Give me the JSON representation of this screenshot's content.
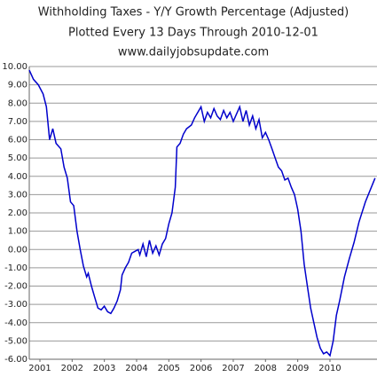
{
  "chart_data": {
    "type": "line",
    "title": "Withholding Taxes - Y/Y Growth Percentage (Adjusted)",
    "subtitle": "Plotted Every 13 Days Through 2010-12-01",
    "source": "www.dailyjobsupdate.com",
    "x": [
      2000.67,
      2000.8,
      2000.95,
      2001.1,
      2001.2,
      2001.3,
      2001.4,
      2001.5,
      2001.65,
      2001.75,
      2001.85,
      2001.95,
      2002.05,
      2002.15,
      2002.25,
      2002.35,
      2002.45,
      2002.5,
      2002.6,
      2002.7,
      2002.8,
      2002.9,
      2003.0,
      2003.1,
      2003.2,
      2003.3,
      2003.4,
      2003.5,
      2003.55,
      2003.65,
      2003.75,
      2003.85,
      2003.95,
      2004.05,
      2004.1,
      2004.2,
      2004.3,
      2004.4,
      2004.5,
      2004.6,
      2004.7,
      2004.8,
      2004.9,
      2005.0,
      2005.1,
      2005.2,
      2005.25,
      2005.35,
      2005.45,
      2005.55,
      2005.7,
      2005.8,
      2005.9,
      2006.0,
      2006.1,
      2006.2,
      2006.3,
      2006.4,
      2006.5,
      2006.6,
      2006.7,
      2006.8,
      2006.9,
      2007.0,
      2007.1,
      2007.2,
      2007.3,
      2007.4,
      2007.5,
      2007.6,
      2007.7,
      2007.8,
      2007.9,
      2008.0,
      2008.1,
      2008.2,
      2008.3,
      2008.4,
      2008.5,
      2008.6,
      2008.7,
      2008.8,
      2008.9,
      2009.0,
      2009.1,
      2009.2,
      2009.3,
      2009.4,
      2009.5,
      2009.6,
      2009.7,
      2009.8,
      2009.9,
      2010.0,
      2010.1,
      2010.2,
      2010.3,
      2010.45,
      2010.6,
      2010.75,
      2010.9,
      2011.1,
      2011.4
    ],
    "series": [
      {
        "name": "Y/Y Growth",
        "color": "#0000cc",
        "values": [
          9.8,
          9.3,
          9.0,
          8.5,
          7.8,
          6.0,
          6.6,
          5.8,
          5.5,
          4.5,
          3.9,
          2.6,
          2.4,
          1.0,
          0.0,
          -0.9,
          -1.5,
          -1.3,
          -2.0,
          -2.6,
          -3.2,
          -3.3,
          -3.1,
          -3.4,
          -3.5,
          -3.2,
          -2.8,
          -2.2,
          -1.4,
          -1.0,
          -0.7,
          -0.2,
          -0.1,
          0.0,
          -0.3,
          0.3,
          -0.4,
          0.5,
          -0.2,
          0.2,
          -0.3,
          0.3,
          0.6,
          1.4,
          2.0,
          3.4,
          5.6,
          5.8,
          6.3,
          6.6,
          6.8,
          7.2,
          7.5,
          7.8,
          7.0,
          7.5,
          7.2,
          7.7,
          7.3,
          7.1,
          7.6,
          7.2,
          7.5,
          7.0,
          7.4,
          7.8,
          7.0,
          7.6,
          6.8,
          7.3,
          6.6,
          7.1,
          6.1,
          6.4,
          6.0,
          5.5,
          5.0,
          4.5,
          4.3,
          3.8,
          3.9,
          3.4,
          3.0,
          2.2,
          1.0,
          -0.8,
          -2.0,
          -3.2,
          -4.0,
          -4.8,
          -5.4,
          -5.7,
          -5.6,
          -5.8,
          -5.0,
          -3.6,
          -2.8,
          -1.5,
          -0.5,
          0.4,
          1.5,
          2.6,
          3.9
        ]
      }
    ],
    "xlim": [
      2000.67,
      2011.46
    ],
    "xticks": [
      2001,
      2002,
      2003,
      2004,
      2005,
      2006,
      2007,
      2008,
      2009,
      2010
    ],
    "ylim": [
      -6,
      10
    ],
    "yticks": [
      {
        "value": 10,
        "label": "10.00"
      },
      {
        "value": 9,
        "label": "9.00"
      },
      {
        "value": 8,
        "label": "8.00"
      },
      {
        "value": 7,
        "label": "7.00"
      },
      {
        "value": 6,
        "label": "6.00"
      },
      {
        "value": 5,
        "label": "5.00"
      },
      {
        "value": 4,
        "label": "4.00"
      },
      {
        "value": 3,
        "label": "3.00"
      },
      {
        "value": 2,
        "label": "2.00"
      },
      {
        "value": 1,
        "label": "1.00"
      },
      {
        "value": 0,
        "label": "0.00"
      },
      {
        "value": -1,
        "label": "-1.00"
      },
      {
        "value": -2,
        "label": "-2.00"
      },
      {
        "value": -3,
        "label": "-3.00"
      },
      {
        "value": -4,
        "label": "-4.00"
      },
      {
        "value": -5,
        "label": "-5.00"
      },
      {
        "value": -6,
        "label": "-6.00"
      }
    ],
    "grid": true
  }
}
